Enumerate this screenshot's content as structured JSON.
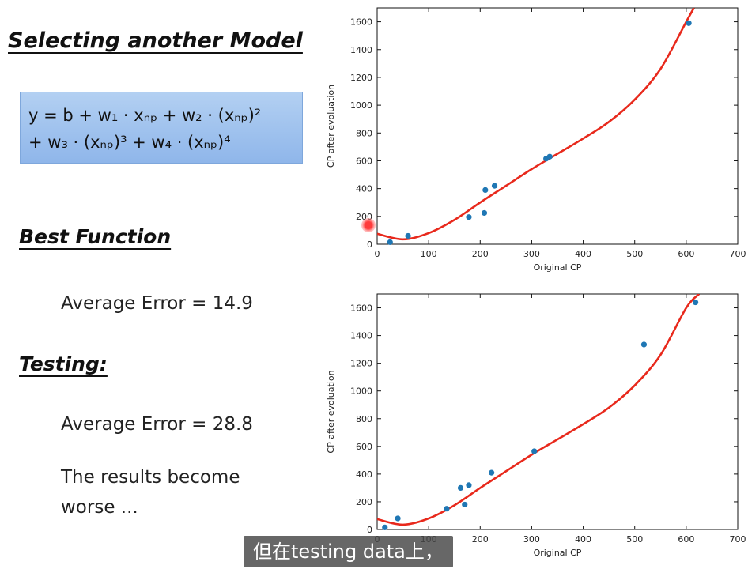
{
  "left": {
    "title": "Selecting another Model",
    "formula_line1": "y = b + w₁ · xₙₚ + w₂ · (xₙₚ)²",
    "formula_line2": "+ w₃ · (xₙₚ)³ + w₄ · (xₙₚ)⁴",
    "best_heading": "Best Function",
    "train_error": "Average Error = 14.9",
    "testing_heading": "Testing:",
    "test_error": "Average Error = 28.8",
    "results_line1": "The results become",
    "results_line2": "worse ..."
  },
  "subtitle": "但在testing data上，",
  "colors": {
    "points": "#1f77b4",
    "curve": "#e8291c",
    "formula_box": "#9fc2ee"
  },
  "chart_data": [
    {
      "type": "scatter",
      "title": "",
      "xlabel": "Original CP",
      "ylabel": "CP after evoluation",
      "xlim": [
        0,
        700
      ],
      "ylim": [
        0,
        1700
      ],
      "xticks": [
        0,
        100,
        200,
        300,
        400,
        500,
        600,
        700
      ],
      "yticks": [
        0,
        200,
        400,
        600,
        800,
        1000,
        1200,
        1400,
        1600
      ],
      "points": {
        "x": [
          25,
          60,
          178,
          208,
          210,
          228,
          328,
          335,
          605
        ],
        "y": [
          15,
          60,
          195,
          225,
          390,
          420,
          615,
          630,
          1590
        ]
      },
      "curve": {
        "x": [
          0,
          50,
          100,
          150,
          200,
          250,
          300,
          350,
          400,
          450,
          500,
          550,
          600,
          615
        ],
        "y": [
          75,
          35,
          80,
          175,
          300,
          420,
          540,
          650,
          760,
          880,
          1040,
          1260,
          1600,
          1700
        ]
      }
    },
    {
      "type": "scatter",
      "title": "",
      "xlabel": "Original CP",
      "ylabel": "CP after evoluation",
      "xlim": [
        0,
        700
      ],
      "ylim": [
        0,
        1700
      ],
      "xticks": [
        0,
        100,
        200,
        300,
        400,
        500,
        600,
        700
      ],
      "yticks": [
        0,
        200,
        400,
        600,
        800,
        1000,
        1200,
        1400,
        1600
      ],
      "points": {
        "x": [
          15,
          40,
          135,
          162,
          170,
          178,
          222,
          305,
          518,
          618
        ],
        "y": [
          15,
          80,
          150,
          300,
          180,
          320,
          410,
          565,
          1335,
          1640
        ]
      },
      "curve": {
        "x": [
          0,
          50,
          100,
          150,
          200,
          250,
          300,
          350,
          400,
          450,
          500,
          550,
          600,
          625
        ],
        "y": [
          75,
          35,
          80,
          175,
          300,
          420,
          540,
          650,
          760,
          880,
          1040,
          1260,
          1600,
          1700
        ]
      }
    }
  ]
}
